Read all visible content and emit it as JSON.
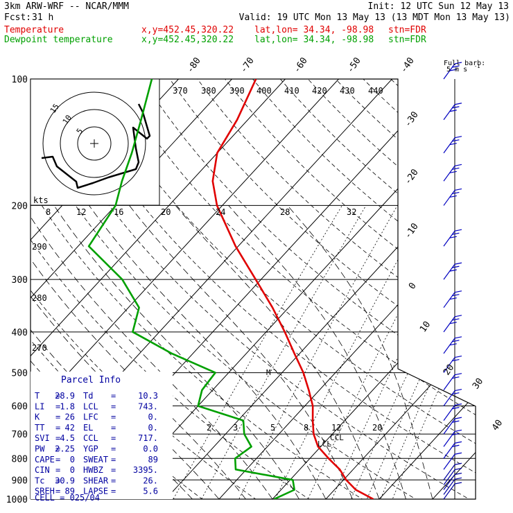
{
  "header": {
    "model": "3km ARW-WRF -- NCAR/MMM",
    "init": "Init: 12 UTC Sun 12 May 13",
    "fcst_label": "Fcst:",
    "fcst_value": "31 h",
    "valid": "Valid: 19 UTC Mon 13 May 13 (13 MDT Mon 13 May 13)",
    "temp_line": {
      "label": "Temperature",
      "xy": "x,y=452.45,320.22",
      "latlon": "lat,lon= 34.34, -98.98",
      "stn": "stn=FDR",
      "color": "#e00000"
    },
    "dew_line": {
      "label": "Dewpoint temperature",
      "xy": "x,y=452.45,320.22",
      "latlon": "lat,lon= 34.34, -98.98",
      "stn": "stn=FDR",
      "color": "#00a000"
    }
  },
  "barb_legend": {
    "title": "Full barb:",
    "value": "5 m s",
    "exp": "-1"
  },
  "hodograph": {
    "unit": "kts",
    "rings": [
      "5",
      "10",
      "15"
    ]
  },
  "parcel_info": {
    "title": "Parcel Info",
    "rows": [
      {
        "k1": "T",
        "v1": "28.9",
        "k2": "Td",
        "v2": "10.3"
      },
      {
        "k1": "LI",
        "v1": "1.8",
        "k2": "LCL",
        "v2": "743."
      },
      {
        "k1": "K",
        "v1": "26",
        "k2": "LFC",
        "v2": "0."
      },
      {
        "k1": "TT",
        "v1": "42",
        "k2": "EL",
        "v2": "0."
      },
      {
        "k1": "SVI",
        "v1": "4.5",
        "k2": "CCL",
        "v2": "717."
      },
      {
        "k1": "PW",
        "v1": "2.25",
        "k2": "YGP",
        "v2": "0.0"
      },
      {
        "k1": "CAPE",
        "v1": "0",
        "k2": "SWEAT",
        "v2": "89"
      },
      {
        "k1": "CIN",
        "v1": "0",
        "k2": "HWBZ",
        "v2": "3395."
      },
      {
        "k1": "Tc",
        "v1": "30.9",
        "k2": "SHEAR",
        "v2": "26."
      },
      {
        "k1": "SREH",
        "v1": "89",
        "k2": "LAPSE",
        "v2": "5.6"
      }
    ],
    "cell": "CELL = 025/04"
  },
  "chart_data": {
    "type": "line",
    "ylabel_ticks": [
      "100",
      "200",
      "300",
      "400",
      "500",
      "600",
      "700",
      "800",
      "900",
      "1000"
    ],
    "temperature_isotherm_labels": [
      "-80",
      "-70",
      "-60",
      "-50",
      "-40",
      "-30",
      "-20",
      "-10",
      "0",
      "10",
      "20",
      "30",
      "40"
    ],
    "theta_labels": [
      "370",
      "380",
      "390",
      "400",
      "410",
      "420",
      "430",
      "440"
    ],
    "theta_low_labels": [
      "290",
      "280",
      "270"
    ],
    "mixing_ratio_upper_labels": [
      "8",
      "12",
      "16",
      "20",
      "24",
      "28",
      "32"
    ],
    "mixing_ratio_lower_labels": [
      "2",
      "3",
      "5",
      "8",
      "12",
      "20"
    ],
    "annotations": [
      "M",
      "CCL",
      "LCL"
    ],
    "series": [
      {
        "name": "Temperature",
        "color": "#e00000",
        "p": [
          1000,
          950,
          900,
          850,
          800,
          750,
          700,
          650,
          600,
          550,
          500,
          450,
          400,
          350,
          300,
          250,
          200,
          175,
          150,
          125,
          100
        ],
        "t_c": [
          28.9,
          24.0,
          20.5,
          17.5,
          13.5,
          9.5,
          6.5,
          4.0,
          1.5,
          -2.0,
          -6.0,
          -11.0,
          -16.5,
          -23.0,
          -31.0,
          -40.5,
          -51.0,
          -56.0,
          -60.0,
          -62.0,
          -65.5
        ]
      },
      {
        "name": "Dewpoint temperature",
        "color": "#00a000",
        "p": [
          1000,
          950,
          900,
          850,
          800,
          750,
          700,
          650,
          600,
          550,
          500,
          450,
          400,
          350,
          300,
          250,
          200,
          175,
          150,
          125,
          100
        ],
        "t_c": [
          10.3,
          12.5,
          10.5,
          -2.0,
          -4.0,
          -3.0,
          -6.5,
          -9.0,
          -20.0,
          -22.0,
          -22.5,
          -34.0,
          -45.0,
          -48.0,
          -56.0,
          -68.0,
          -70.0,
          -73.0,
          -76.0,
          -80.0,
          -85.0
        ]
      }
    ],
    "wind_barbs": {
      "p": [
        1000,
        975,
        950,
        925,
        900,
        850,
        800,
        750,
        700,
        650,
        600,
        550,
        500,
        450,
        400,
        350,
        300,
        250,
        200,
        175,
        150,
        125,
        100
      ]
    }
  }
}
